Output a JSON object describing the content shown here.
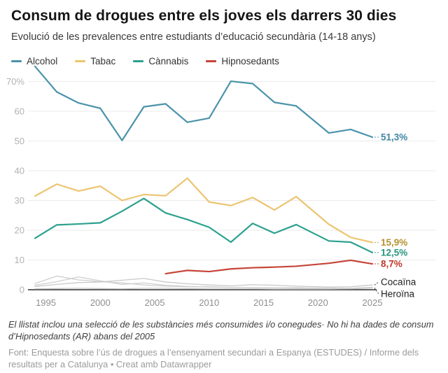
{
  "chart_data": {
    "type": "line",
    "title": "Consum de drogues entre els joves els darrers 30 dies",
    "subtitle": "Evolució de les prevalences entre estudiants d’educació secundària (14-18 anys)",
    "xlabel": "",
    "ylabel": "",
    "grid": "horizontal",
    "xlim": [
      1994,
      2025
    ],
    "ylim": [
      0,
      75.5
    ],
    "x": [
      1994,
      1996,
      1998,
      2000,
      2002,
      2004,
      2006,
      2008,
      2010,
      2012,
      2014,
      2016,
      2018,
      2021,
      2023,
      2025
    ],
    "x_ticks": [
      {
        "value": 1995,
        "label": "1995"
      },
      {
        "value": 2000,
        "label": "2000"
      },
      {
        "value": 2005,
        "label": "2005"
      },
      {
        "value": 2010,
        "label": "2010"
      },
      {
        "value": 2015,
        "label": "2015"
      },
      {
        "value": 2020,
        "label": "2020"
      },
      {
        "value": 2025,
        "label": "2025"
      }
    ],
    "y_ticks": [
      {
        "value": 0,
        "label": "0"
      },
      {
        "value": 10,
        "label": "10"
      },
      {
        "value": 20,
        "label": "20"
      },
      {
        "value": 30,
        "label": "30"
      },
      {
        "value": 40,
        "label": "40"
      },
      {
        "value": 50,
        "label": "50"
      },
      {
        "value": 60,
        "label": "60"
      },
      {
        "value": 70,
        "label": "70%"
      }
    ],
    "legend": {
      "position": "top",
      "entries": [
        {
          "label": "Alcohol",
          "color": "#4b93aa"
        },
        {
          "label": "Tabac",
          "color": "#ecc571"
        },
        {
          "label": "Cànnabis",
          "color": "#2ba18e"
        },
        {
          "label": "Hipnosedants",
          "color": "#c64438"
        }
      ]
    },
    "series": [
      {
        "name": "Alcohol",
        "color": "#4b93aa",
        "label_color": "#3f87a0",
        "end_label": "51,3%",
        "values": [
          75.1,
          66.5,
          62.8,
          61.0,
          50.2,
          61.5,
          62.5,
          56.3,
          57.7,
          70.1,
          69.3,
          63.0,
          61.8,
          52.7,
          53.9,
          51.3
        ]
      },
      {
        "name": "Tabac",
        "color": "#ecc571",
        "label_color": "#b6922f",
        "end_label": "15,9%",
        "values": [
          31.5,
          35.5,
          33.2,
          34.8,
          30.0,
          32.0,
          31.6,
          37.5,
          29.5,
          28.3,
          31.0,
          26.8,
          31.3,
          22.0,
          17.6,
          15.9
        ]
      },
      {
        "name": "Cànnabis",
        "color": "#2ba18e",
        "label_color": "#27967f",
        "end_label": "12,5%",
        "values": [
          17.3,
          21.8,
          22.1,
          22.5,
          26.4,
          30.7,
          25.8,
          23.6,
          21.0,
          16.0,
          22.3,
          19.0,
          21.9,
          16.4,
          16.0,
          12.5
        ]
      },
      {
        "name": "Hipnosedants",
        "color": "#c64438",
        "label_color": "#c0392b",
        "end_label": "8,7%",
        "values": [
          null,
          null,
          null,
          null,
          null,
          null,
          5.4,
          6.5,
          6.1,
          7.0,
          7.4,
          7.6,
          7.9,
          8.9,
          9.9,
          8.7
        ]
      },
      {
        "name": "Cocaïna",
        "color": "#c9c9c9",
        "label_color": "#1f1f1f",
        "end_label": "Cocaïna",
        "values": [
          1.1,
          1.8,
          2.4,
          2.6,
          3.2,
          3.8,
          2.6,
          2.0,
          1.6,
          1.3,
          1.7,
          1.5,
          1.2,
          0.9,
          1.0,
          1.6
        ]
      },
      {
        "name": "Heroïna",
        "color": "#c9c9c9",
        "label_color": "#1f1f1f",
        "end_label": "Heroïna",
        "values": [
          0.3,
          0.4,
          0.5,
          0.4,
          0.3,
          0.5,
          0.5,
          0.4,
          0.3,
          0.3,
          0.3,
          0.2,
          0.2,
          0.2,
          0.3,
          0.6
        ]
      },
      {
        "name": "",
        "color": "#cfcfcf",
        "label_color": "#cfcfcf",
        "end_label": "",
        "values": [
          2.1,
          4.6,
          3.3,
          2.7,
          2.3,
          1.6,
          1.2,
          1.0,
          1.0,
          0.8,
          0.7,
          0.6,
          0.7,
          0.5,
          0.5,
          0.8
        ]
      },
      {
        "name": "",
        "color": "#cfcfcf",
        "label_color": "#cfcfcf",
        "end_label": "",
        "values": [
          1.5,
          2.7,
          4.3,
          3.0,
          1.8,
          2.3,
          1.5,
          1.1,
          0.9,
          0.8,
          0.7,
          0.6,
          0.5,
          0.5,
          0.4,
          0.6
        ]
      }
    ]
  },
  "footer": {
    "note": "El llistat inclou una selecció de les substàncies més consumides i/o conegudes· No hi ha dades de consum d’Hipnosedants (AR) abans del 2005",
    "source": "Font: Enquesta sobre l’ús de drogues a l’ensenyament secundari a Espanya (ESTUDES) / Informe dels resultats per a Catalunya • Creat amb Datawrapper"
  }
}
